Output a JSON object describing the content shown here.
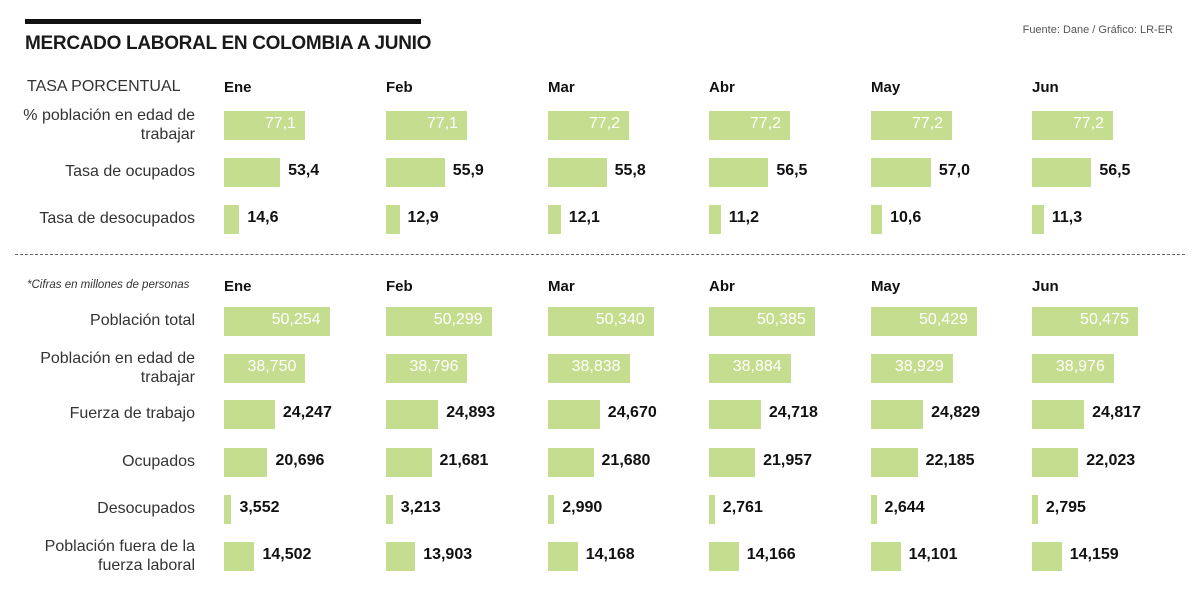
{
  "header": {
    "title": "MERCADO LABORAL EN COLOMBIA A JUNIO",
    "source": "Fuente: Dane / Gráfico: LR-ER"
  },
  "colors": {
    "bar": "#c5dd8e",
    "inside_label": "#ffffff",
    "outside_label": "#111111"
  },
  "chart_data": [
    {
      "type": "bar",
      "section_label": "TASA PORCENTUAL",
      "categories": [
        "Ene",
        "Feb",
        "Mar",
        "Abr",
        "May",
        "Jun"
      ],
      "series": [
        {
          "name": "% población en edad de trabajar",
          "values": [
            77.1,
            77.1,
            77.2,
            77.2,
            77.2,
            77.2
          ],
          "labels": [
            "77,1",
            "77,1",
            "77,2",
            "77,2",
            "77,2",
            "77,2"
          ],
          "label_inside": true
        },
        {
          "name": "Tasa de ocupados",
          "values": [
            53.4,
            55.9,
            55.8,
            56.5,
            57.0,
            56.5
          ],
          "labels": [
            "53,4",
            "55,9",
            "55,8",
            "56,5",
            "57,0",
            "56,5"
          ],
          "label_inside": false
        },
        {
          "name": "Tasa de desocupados",
          "values": [
            14.6,
            12.9,
            12.1,
            11.2,
            10.6,
            11.3
          ],
          "labels": [
            "14,6",
            "12,9",
            "12,1",
            "11,2",
            "10,6",
            "11,3"
          ],
          "label_inside": false
        }
      ]
    },
    {
      "type": "bar",
      "section_label": "*Cifras en millones de personas",
      "categories": [
        "Ene",
        "Feb",
        "Mar",
        "Abr",
        "May",
        "Jun"
      ],
      "series": [
        {
          "name": "Población total",
          "values": [
            50.254,
            50.299,
            50.34,
            50.385,
            50.429,
            50.475
          ],
          "labels": [
            "50,254",
            "50,299",
            "50,340",
            "50,385",
            "50,429",
            "50,475"
          ],
          "label_inside": true
        },
        {
          "name": "Población en edad de trabajar",
          "values": [
            38.75,
            38.796,
            38.838,
            38.884,
            38.929,
            38.976
          ],
          "labels": [
            "38,750",
            "38,796",
            "38,838",
            "38,884",
            "38,929",
            "38,976"
          ],
          "label_inside": true
        },
        {
          "name": "Fuerza de trabajo",
          "values": [
            24.247,
            24.893,
            24.67,
            24.718,
            24.829,
            24.817
          ],
          "labels": [
            "24,247",
            "24,893",
            "24,670",
            "24,718",
            "24,829",
            "24,817"
          ],
          "label_inside": false
        },
        {
          "name": "Ocupados",
          "values": [
            20.696,
            21.681,
            21.68,
            21.957,
            22.185,
            22.023
          ],
          "labels": [
            "20,696",
            "21,681",
            "21,680",
            "21,957",
            "22,185",
            "22,023"
          ],
          "label_inside": false
        },
        {
          "name": "Desocupados",
          "values": [
            3.552,
            3.213,
            2.99,
            2.761,
            2.644,
            2.795
          ],
          "labels": [
            "3,552",
            "3,213",
            "2,990",
            "2,761",
            "2,644",
            "2,795"
          ],
          "label_inside": false
        },
        {
          "name": "Población fuera de la fuerza laboral",
          "values": [
            14.502,
            13.903,
            14.168,
            14.166,
            14.101,
            14.159
          ],
          "labels": [
            "14,502",
            "13,903",
            "14,168",
            "14,166",
            "14,101",
            "14,159"
          ],
          "label_inside": false
        }
      ]
    }
  ]
}
